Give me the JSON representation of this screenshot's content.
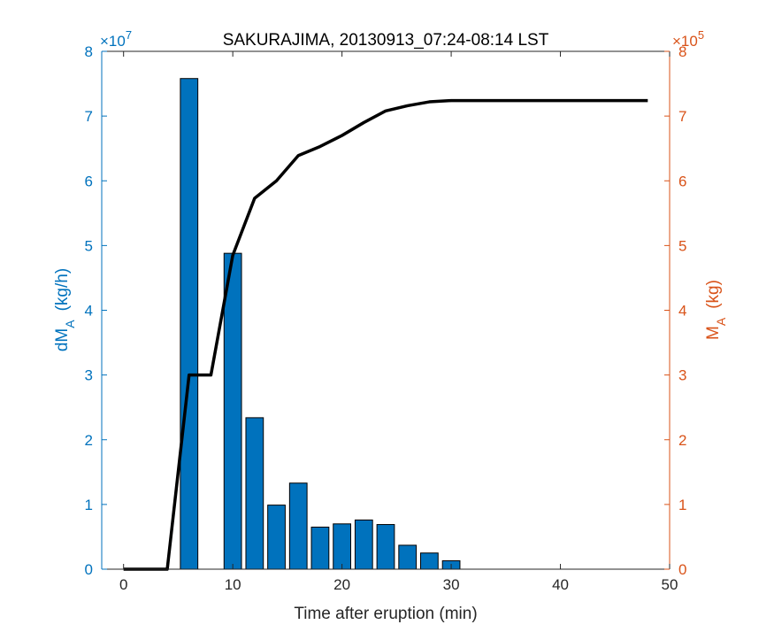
{
  "chart_data": {
    "type": "bar+line",
    "title": "SAKURAJIMA, 20130913_07:24-08:14 LST",
    "xlabel": "Time after eruption (min)",
    "xlim": [
      -2,
      50
    ],
    "xticks": [
      "0",
      "10",
      "20",
      "30",
      "40",
      "50"
    ],
    "left_axis": {
      "label_main": "dM",
      "label_sub": "A",
      "label_unit": "(kg/h)",
      "multiplier": "×10",
      "multiplier_exp": "7",
      "ylim": [
        0,
        8
      ],
      "ticks": [
        "0",
        "1",
        "2",
        "3",
        "4",
        "5",
        "6",
        "7",
        "8"
      ],
      "color": "#0072BD"
    },
    "right_axis": {
      "label_main": "M",
      "label_sub": "A",
      "label_unit": "(kg)",
      "multiplier": "×10",
      "multiplier_exp": "5",
      "ylim": [
        0,
        8
      ],
      "ticks": [
        "0",
        "1",
        "2",
        "3",
        "4",
        "5",
        "6",
        "7",
        "8"
      ],
      "color": "#D95319"
    },
    "bars": {
      "name": "dM_A",
      "x": [
        6,
        8,
        10,
        12,
        14,
        16,
        18,
        20,
        22,
        24,
        26,
        28,
        30
      ],
      "values": [
        7.58,
        0,
        4.88,
        2.34,
        0.99,
        1.33,
        0.65,
        0.7,
        0.76,
        0.69,
        0.37,
        0.25,
        0.13
      ],
      "width": 1.6,
      "color": "#0072BD"
    },
    "line": {
      "name": "M_A",
      "x": [
        0,
        4,
        6,
        8,
        10,
        12,
        14,
        16,
        18,
        20,
        22,
        24,
        26,
        28,
        30,
        32,
        34,
        36,
        38,
        40,
        42,
        44,
        46,
        48
      ],
      "values": [
        0,
        0,
        3.0,
        3.0,
        4.85,
        5.73,
        6.0,
        6.39,
        6.53,
        6.7,
        6.9,
        7.08,
        7.16,
        7.22,
        7.24,
        7.24,
        7.24,
        7.24,
        7.24,
        7.24,
        7.24,
        7.24,
        7.24,
        7.24
      ],
      "color": "#000000"
    }
  }
}
